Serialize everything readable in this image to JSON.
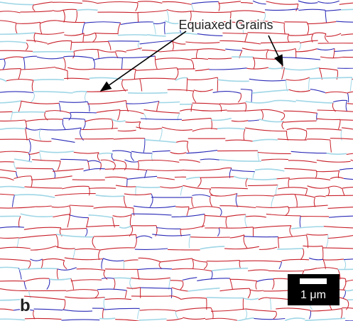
{
  "annotation": {
    "label": "Equiaxed Grains"
  },
  "panel_label": "b",
  "scale_bar": {
    "label": "1 μm"
  }
}
